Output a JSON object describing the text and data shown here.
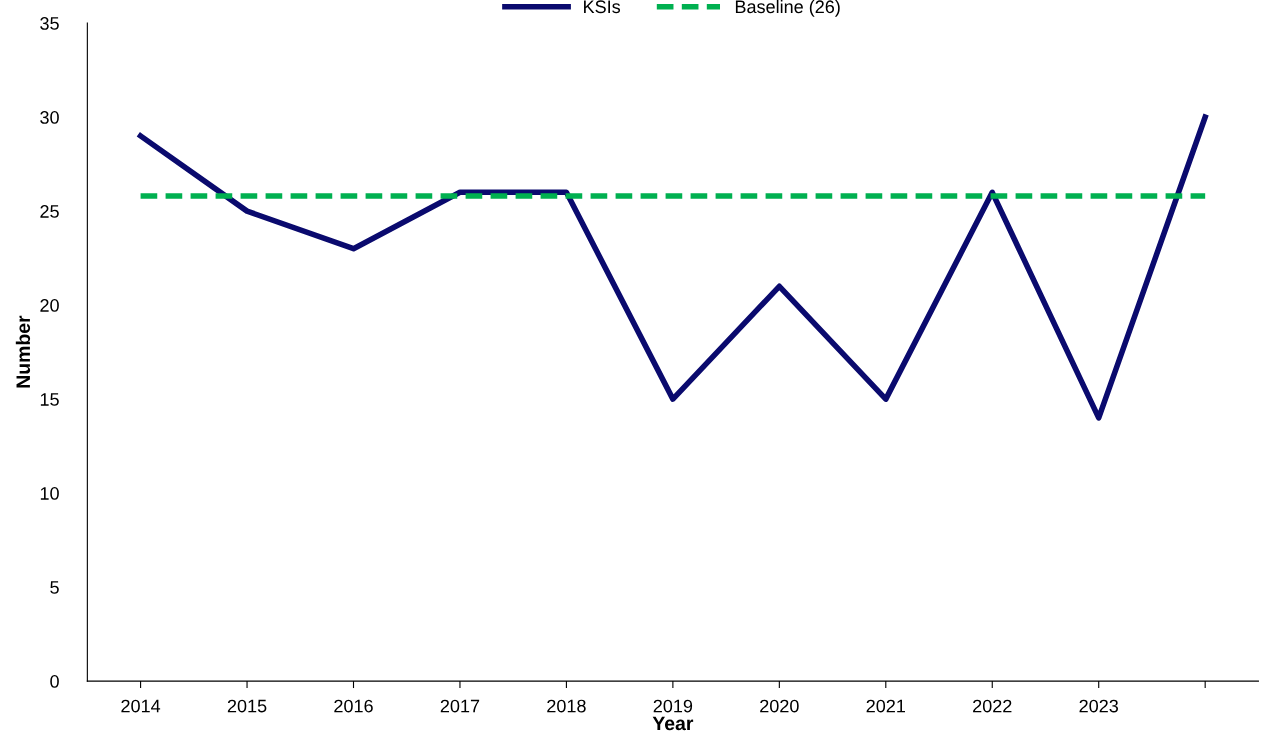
{
  "chart_data": {
    "type": "line",
    "xlabel": "Year",
    "ylabel": "Number",
    "categories": [
      "2014",
      "2015",
      "2016",
      "2017",
      "2018",
      "2019",
      "2020",
      "2021",
      "2022",
      "2023",
      null
    ],
    "series": [
      {
        "name": "KSIs",
        "color": "#0a0a6e",
        "line_style": "solid",
        "values": [
          29,
          25,
          23,
          26,
          26,
          15,
          21,
          15,
          26,
          14,
          30
        ]
      },
      {
        "name": "Baseline (26)",
        "color": "#00b050",
        "line_style": "dashed",
        "values": [
          25.8,
          25.8,
          25.8,
          25.8,
          25.8,
          25.8,
          25.8,
          25.8,
          25.8,
          25.8,
          25.8
        ]
      }
    ],
    "ylim": [
      0,
      35
    ],
    "yticks": [
      0,
      5,
      10,
      15,
      20,
      25,
      30,
      35
    ],
    "grid": false,
    "legend": "top",
    "marker": "none"
  }
}
